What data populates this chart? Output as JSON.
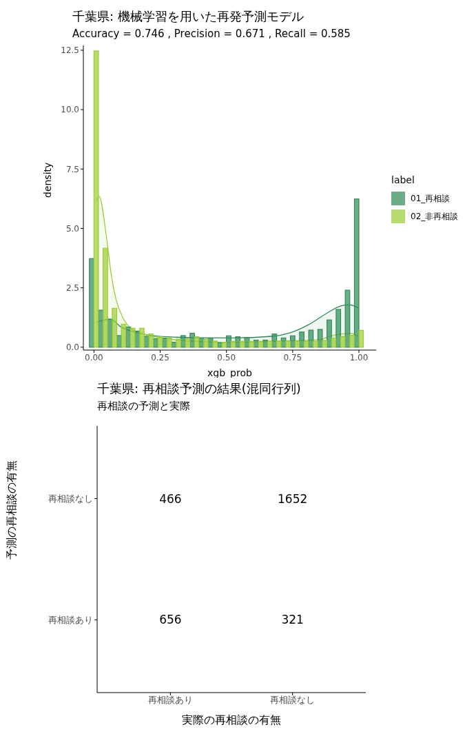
{
  "chart_data": [
    {
      "type": "histogram",
      "title": "千葉県: 機械学習を用いた再発予測モデル",
      "subtitle": "Accuracy =  0.746 , Precision =  0.671 , Recall =  0.585",
      "xlabel": "xgb_prob",
      "ylabel": "density",
      "legend_title": "label",
      "legend": "right",
      "grid": false,
      "bins": [
        -0.017,
        0.017,
        0.052,
        0.086,
        0.121,
        0.155,
        0.19,
        0.224,
        0.259,
        0.293,
        0.328,
        0.362,
        0.397,
        0.431,
        0.466,
        0.5,
        0.534,
        0.569,
        0.603,
        0.638,
        0.672,
        0.707,
        0.741,
        0.776,
        0.81,
        0.845,
        0.879,
        0.914,
        0.948,
        0.983,
        1.017
      ],
      "xlim": [
        -0.04,
        1.065
      ],
      "xticks": [
        {
          "value": 0,
          "label": "0.00"
        },
        {
          "value": 0.25,
          "label": "0.25"
        },
        {
          "value": 0.5,
          "label": "0.50"
        },
        {
          "value": 0.75,
          "label": "0.75"
        },
        {
          "value": 1,
          "label": "1.00"
        }
      ],
      "ylim": [
        -0.12,
        12.7
      ],
      "yticks": [
        {
          "value": 0,
          "label": "0.0"
        },
        {
          "value": 2.5,
          "label": "2.5"
        },
        {
          "value": 5,
          "label": "5.0"
        },
        {
          "value": 7.5,
          "label": "7.5"
        },
        {
          "value": 10,
          "label": "10.0"
        },
        {
          "value": 12.5,
          "label": "12.5"
        }
      ],
      "series": [
        {
          "name": "01_再相談",
          "color": "#2e8b57",
          "values": [
            3.73,
            1.56,
            1.18,
            0.49,
            0.85,
            0.68,
            0.46,
            0.36,
            0.38,
            0.21,
            0.49,
            0.59,
            0.38,
            0.38,
            0.19,
            0.48,
            0.44,
            0.41,
            0.3,
            0.3,
            0.56,
            0.39,
            0.48,
            0.64,
            0.72,
            0.75,
            1.15,
            1.59,
            2.4,
            6.24
          ]
        },
        {
          "name": "02_非再相談",
          "color": "#9acd32",
          "values": [
            12.47,
            4.17,
            1.64,
            0.97,
            0.8,
            0.8,
            0.56,
            0.44,
            0.39,
            0.34,
            0.36,
            0.44,
            0.34,
            0.26,
            0.21,
            0.25,
            0.25,
            0.25,
            0.25,
            0.25,
            0.26,
            0.26,
            0.25,
            0.25,
            0.25,
            0.28,
            0.38,
            0.45,
            0.5,
            0.71
          ]
        },
        {
          "type": "area",
          "color": "#2e8b57",
          "x": [
            0.01,
            0.062,
            0.1,
            0.186,
            0.273,
            0.4,
            0.525,
            0.672,
            0.741,
            0.81,
            0.88,
            0.932,
            0.963,
            0.997
          ],
          "values": [
            1.07,
            1.18,
            0.87,
            0.56,
            0.44,
            0.4,
            0.39,
            0.46,
            0.61,
            0.95,
            1.44,
            1.74,
            1.79,
            1.66
          ]
        },
        {
          "type": "area",
          "color": "#9acd32",
          "x": [
            0.01,
            0.019,
            0.049,
            0.066,
            0.083,
            0.109,
            0.143,
            0.186,
            0.273,
            0.403,
            0.5,
            0.672,
            0.845,
            0.906,
            0.971,
            0.997
          ],
          "values": [
            6.16,
            6.36,
            4.49,
            3.0,
            2.03,
            1.25,
            0.76,
            0.56,
            0.36,
            0.24,
            0.2,
            0.25,
            0.31,
            0.51,
            0.58,
            0.46
          ]
        }
      ]
    },
    {
      "type": "heatmap",
      "title": "千葉県: 再相談予測の結果(混同行列)",
      "subtitle": "再相談の予測と実際",
      "xlabel": "実際の再相談の有無",
      "ylabel": "予測の再相談の有無",
      "categories": [
        "再相談あり",
        "再相談なし"
      ],
      "y_categories": [
        "再相談なし",
        "再相談あり"
      ],
      "data_labels": true,
      "cells": [
        [
          466,
          1652
        ],
        [
          656,
          321
        ]
      ]
    }
  ]
}
